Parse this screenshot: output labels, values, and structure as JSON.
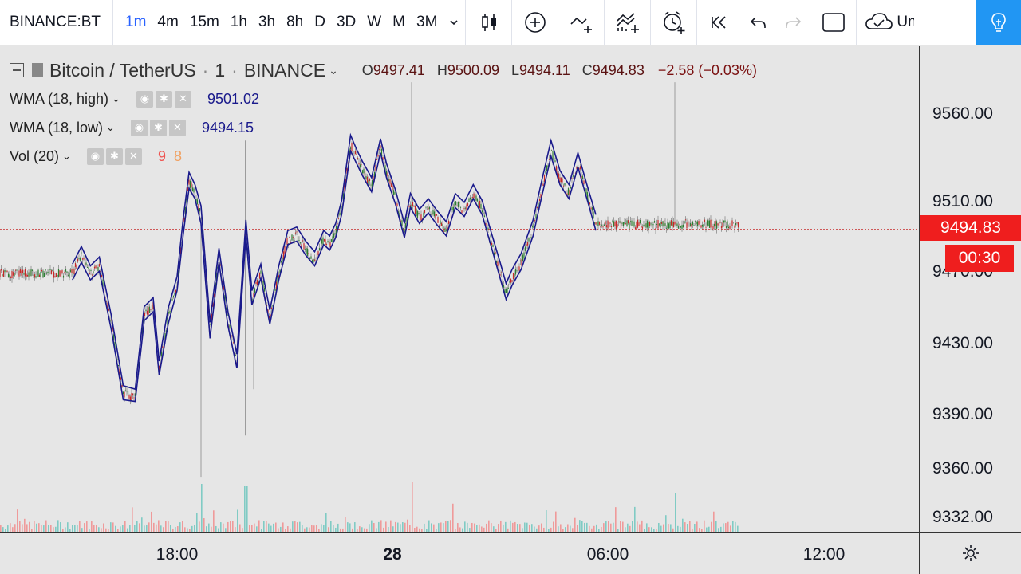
{
  "toolbar": {
    "symbol": "BINANCE:BT",
    "intervals": [
      "1m",
      "4m",
      "15m",
      "1h",
      "3h",
      "8h",
      "D",
      "3D",
      "W",
      "M",
      "3M"
    ],
    "active_interval": "1m",
    "save_label": "Un",
    "icons": [
      "candle-style-icon",
      "indicators-icon",
      "compare-icon",
      "fundamentals-icon",
      "alert-icon",
      "replay-icon",
      "undo-icon",
      "redo-icon",
      "fullscreen-icon",
      "cloud-save-icon",
      "ideas-icon"
    ]
  },
  "legend": {
    "symbol_title": "Bitcoin / TetherUS",
    "interval": "1",
    "exchange": "BINANCE",
    "open_label": "O",
    "open": "9497.41",
    "high_label": "H",
    "high": "9500.09",
    "low_label": "L",
    "low": "9494.11",
    "close_label": "C",
    "close": "9494.83",
    "change": "−2.58 (−0.03%)",
    "indicators": [
      {
        "name": "WMA (18, high)",
        "value": "9501.02"
      },
      {
        "name": "WMA (18, low)",
        "value": "9494.15"
      },
      {
        "name": "Vol (20)",
        "value_a": "9",
        "value_b": "8"
      }
    ]
  },
  "price_axis": {
    "ticks": [
      "9560.00",
      "9510.00",
      "9470.00",
      "9430.00",
      "9390.00",
      "9360.00",
      "9332.00"
    ],
    "last_price": "9494.83",
    "countdown": "00:30",
    "last_price_color": "#ef1e1e"
  },
  "time_axis": {
    "ticks": [
      {
        "label": "18:00",
        "bold": false
      },
      {
        "label": "28",
        "bold": true
      },
      {
        "label": "06:00",
        "bold": false
      },
      {
        "label": "12:00",
        "bold": false
      }
    ]
  },
  "colors": {
    "accent": "#2962ff",
    "wma_line": "#1a1a8c",
    "candle_up": "#2e7d32",
    "candle_down": "#c62828",
    "vol_up": "#80cbc4",
    "vol_down": "#ef9a9a",
    "idea_button": "#2196f3"
  },
  "chart_data": {
    "type": "line",
    "title": "Bitcoin / TetherUS · 1 · BINANCE",
    "xlabel": "",
    "ylabel": "",
    "x_ticks": [
      "18:00",
      "28",
      "06:00",
      "12:00"
    ],
    "ylim": [
      9330,
      9580
    ],
    "series": [
      {
        "name": "WMA (18, high)",
        "points": [
          [
            "15:05",
            9475
          ],
          [
            "15:20",
            9485
          ],
          [
            "15:35",
            9474
          ],
          [
            "15:50",
            9479
          ],
          [
            "16:10",
            9446
          ],
          [
            "16:30",
            9406
          ],
          [
            "16:50",
            9404
          ],
          [
            "17:05",
            9451
          ],
          [
            "17:20",
            9456
          ],
          [
            "17:30",
            9420
          ],
          [
            "17:45",
            9450
          ],
          [
            "18:00",
            9468
          ],
          [
            "18:10",
            9500
          ],
          [
            "18:20",
            9527
          ],
          [
            "18:30",
            9520
          ],
          [
            "18:40",
            9508
          ],
          [
            "18:55",
            9442
          ],
          [
            "19:10",
            9484
          ],
          [
            "19:25",
            9448
          ],
          [
            "19:40",
            9424
          ],
          [
            "19:55",
            9500
          ],
          [
            "20:05",
            9460
          ],
          [
            "20:20",
            9475
          ],
          [
            "20:35",
            9449
          ],
          [
            "20:50",
            9474
          ],
          [
            "21:05",
            9494
          ],
          [
            "21:20",
            9496
          ],
          [
            "21:35",
            9488
          ],
          [
            "21:50",
            9482
          ],
          [
            "22:05",
            9494
          ],
          [
            "22:15",
            9491
          ],
          [
            "22:25",
            9498
          ],
          [
            "22:35",
            9511
          ],
          [
            "22:50",
            9548
          ],
          [
            "23:00",
            9540
          ],
          [
            "23:10",
            9533
          ],
          [
            "23:25",
            9524
          ],
          [
            "23:40",
            9546
          ],
          [
            "23:50",
            9532
          ],
          [
            "00:05",
            9517
          ],
          [
            "00:20",
            9498
          ],
          [
            "00:30",
            9515
          ],
          [
            "00:45",
            9506
          ],
          [
            "01:00",
            9512
          ],
          [
            "01:15",
            9505
          ],
          [
            "01:30",
            9499
          ],
          [
            "01:45",
            9515
          ],
          [
            "02:00",
            9510
          ],
          [
            "02:15",
            9520
          ],
          [
            "02:30",
            9511
          ],
          [
            "02:45",
            9493
          ],
          [
            "03:00",
            9476
          ],
          [
            "03:10",
            9464
          ],
          [
            "03:20",
            9472
          ],
          [
            "03:35",
            9481
          ],
          [
            "03:55",
            9500
          ],
          [
            "04:10",
            9523
          ],
          [
            "04:25",
            9545
          ],
          [
            "04:40",
            9528
          ],
          [
            "04:55",
            9520
          ],
          [
            "05:10",
            9538
          ],
          [
            "05:25",
            9520
          ],
          [
            "05:40",
            9503
          ]
        ]
      },
      {
        "name": "WMA (18, low)",
        "points": [
          [
            "15:05",
            9466
          ],
          [
            "15:20",
            9476
          ],
          [
            "15:35",
            9466
          ],
          [
            "15:50",
            9471
          ],
          [
            "16:10",
            9438
          ],
          [
            "16:30",
            9398
          ],
          [
            "16:50",
            9397
          ],
          [
            "17:05",
            9443
          ],
          [
            "17:20",
            9448
          ],
          [
            "17:30",
            9412
          ],
          [
            "17:45",
            9441
          ],
          [
            "18:00",
            9460
          ],
          [
            "18:10",
            9491
          ],
          [
            "18:20",
            9518
          ],
          [
            "18:30",
            9512
          ],
          [
            "18:40",
            9498
          ],
          [
            "18:55",
            9433
          ],
          [
            "19:10",
            9476
          ],
          [
            "19:25",
            9440
          ],
          [
            "19:40",
            9416
          ],
          [
            "19:55",
            9491
          ],
          [
            "20:05",
            9452
          ],
          [
            "20:20",
            9467
          ],
          [
            "20:35",
            9441
          ],
          [
            "20:50",
            9466
          ],
          [
            "21:05",
            9486
          ],
          [
            "21:20",
            9488
          ],
          [
            "21:35",
            9480
          ],
          [
            "21:50",
            9474
          ],
          [
            "22:05",
            9486
          ],
          [
            "22:15",
            9483
          ],
          [
            "22:25",
            9490
          ],
          [
            "22:35",
            9503
          ],
          [
            "22:50",
            9539
          ],
          [
            "23:00",
            9532
          ],
          [
            "23:10",
            9525
          ],
          [
            "23:25",
            9516
          ],
          [
            "23:40",
            9538
          ],
          [
            "23:50",
            9524
          ],
          [
            "00:05",
            9509
          ],
          [
            "00:20",
            9490
          ],
          [
            "00:30",
            9507
          ],
          [
            "00:45",
            9498
          ],
          [
            "01:00",
            9504
          ],
          [
            "01:15",
            9497
          ],
          [
            "01:30",
            9491
          ],
          [
            "01:45",
            9507
          ],
          [
            "02:00",
            9502
          ],
          [
            "02:15",
            9512
          ],
          [
            "02:30",
            9503
          ],
          [
            "02:45",
            9485
          ],
          [
            "03:00",
            9467
          ],
          [
            "03:10",
            9455
          ],
          [
            "03:20",
            9463
          ],
          [
            "03:35",
            9472
          ],
          [
            "03:55",
            9491
          ],
          [
            "04:10",
            9514
          ],
          [
            "04:25",
            9536
          ],
          [
            "04:40",
            9520
          ],
          [
            "04:55",
            9512
          ],
          [
            "05:10",
            9530
          ],
          [
            "05:25",
            9512
          ],
          [
            "05:40",
            9494
          ]
        ]
      }
    ]
  }
}
